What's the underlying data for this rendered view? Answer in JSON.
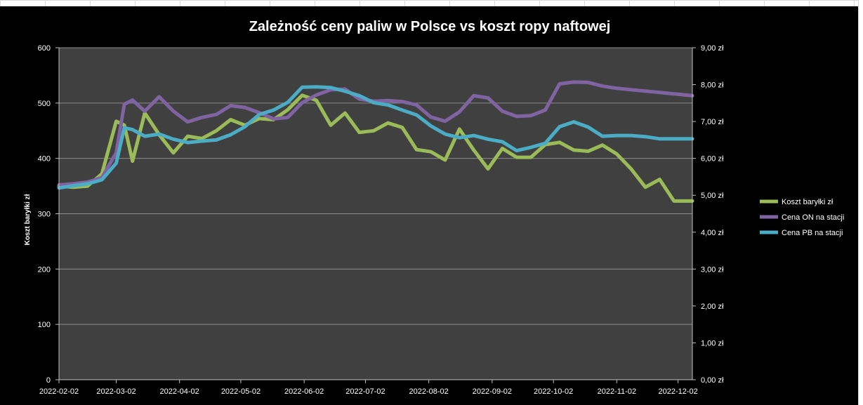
{
  "chart_data": {
    "type": "line",
    "title": "Zależność ceny paliw w Polsce vs koszt ropy naftowej",
    "ylabel": "Koszt baryłki zł",
    "y2label": "",
    "ylim": [
      0,
      600
    ],
    "y2lim": [
      0,
      9
    ],
    "y_ticks": [
      "0",
      "100",
      "200",
      "300",
      "400",
      "500",
      "600"
    ],
    "y2_ticks": [
      "0,00 zł",
      "1,00 zł",
      "2,00 zł",
      "3,00 zł",
      "4,00 zł",
      "5,00 zł",
      "6,00 zł",
      "7,00 zł",
      "8,00 zł",
      "9,00 zł"
    ],
    "x_ticks": [
      "2022-02-02",
      "2022-03-02",
      "2022-04-02",
      "2022-05-02",
      "2022-06-02",
      "2022-07-02",
      "2022-08-02",
      "2022-09-02",
      "2022-10-02",
      "2022-11-02",
      "2022-12-02"
    ],
    "x_start": "2022-02-02",
    "x_end": "2022-12-09",
    "grid": true,
    "legend": "right",
    "series": [
      {
        "name": "Koszt baryłki zł",
        "axis": "left",
        "color": "#9bbb59",
        "x": [
          "2022-02-02",
          "2022-02-09",
          "2022-02-16",
          "2022-02-23",
          "2022-03-02",
          "2022-03-06",
          "2022-03-10",
          "2022-03-16",
          "2022-03-23",
          "2022-03-30",
          "2022-04-06",
          "2022-04-13",
          "2022-04-20",
          "2022-04-27",
          "2022-05-04",
          "2022-05-11",
          "2022-05-18",
          "2022-05-25",
          "2022-06-01",
          "2022-06-08",
          "2022-06-15",
          "2022-06-22",
          "2022-06-29",
          "2022-07-06",
          "2022-07-13",
          "2022-07-20",
          "2022-07-27",
          "2022-08-03",
          "2022-08-10",
          "2022-08-17",
          "2022-08-24",
          "2022-08-31",
          "2022-09-07",
          "2022-09-14",
          "2022-09-21",
          "2022-09-28",
          "2022-10-05",
          "2022-10-12",
          "2022-10-19",
          "2022-10-26",
          "2022-11-02",
          "2022-11-09",
          "2022-11-16",
          "2022-11-23",
          "2022-11-30",
          "2022-12-09"
        ],
        "values": [
          350,
          348,
          350,
          372,
          467,
          460,
          395,
          482,
          443,
          410,
          440,
          436,
          450,
          470,
          460,
          472,
          470,
          488,
          514,
          505,
          460,
          482,
          447,
          450,
          464,
          456,
          416,
          412,
          397,
          453,
          415,
          381,
          418,
          402,
          402,
          425,
          429,
          415,
          413,
          424,
          408,
          381,
          348,
          362,
          323,
          323
        ]
      },
      {
        "name": "Cena ON na stacji",
        "axis": "right",
        "color": "#8064a2",
        "x": [
          "2022-02-02",
          "2022-02-09",
          "2022-02-16",
          "2022-02-23",
          "2022-03-02",
          "2022-03-06",
          "2022-03-10",
          "2022-03-16",
          "2022-03-23",
          "2022-03-30",
          "2022-04-06",
          "2022-04-13",
          "2022-04-20",
          "2022-04-27",
          "2022-05-04",
          "2022-05-11",
          "2022-05-18",
          "2022-05-25",
          "2022-06-01",
          "2022-06-08",
          "2022-06-15",
          "2022-06-22",
          "2022-06-29",
          "2022-07-06",
          "2022-07-13",
          "2022-07-20",
          "2022-07-27",
          "2022-08-03",
          "2022-08-10",
          "2022-08-17",
          "2022-08-24",
          "2022-08-31",
          "2022-09-07",
          "2022-09-14",
          "2022-09-21",
          "2022-09-28",
          "2022-10-05",
          "2022-10-12",
          "2022-10-19",
          "2022-10-26",
          "2022-11-02",
          "2022-12-09"
        ],
        "values": [
          5.28,
          5.31,
          5.36,
          5.48,
          6.15,
          7.47,
          7.58,
          7.28,
          7.67,
          7.28,
          6.99,
          7.11,
          7.19,
          7.43,
          7.38,
          7.24,
          7.07,
          7.11,
          7.51,
          7.72,
          7.86,
          7.88,
          7.61,
          7.55,
          7.57,
          7.54,
          7.45,
          7.12,
          7.01,
          7.26,
          7.7,
          7.64,
          7.28,
          7.14,
          7.16,
          7.31,
          8.02,
          8.07,
          8.06,
          7.96,
          7.9,
          7.7
        ]
      },
      {
        "name": "Cena PB na stacji",
        "axis": "right",
        "color": "#4bacc6",
        "x": [
          "2022-02-02",
          "2022-02-09",
          "2022-02-16",
          "2022-02-23",
          "2022-03-02",
          "2022-03-06",
          "2022-03-10",
          "2022-03-16",
          "2022-03-23",
          "2022-03-30",
          "2022-04-06",
          "2022-04-13",
          "2022-04-20",
          "2022-04-27",
          "2022-05-04",
          "2022-05-11",
          "2022-05-18",
          "2022-05-25",
          "2022-06-01",
          "2022-06-08",
          "2022-06-15",
          "2022-06-22",
          "2022-06-29",
          "2022-07-06",
          "2022-07-13",
          "2022-07-20",
          "2022-07-27",
          "2022-08-03",
          "2022-08-10",
          "2022-08-17",
          "2022-08-24",
          "2022-08-31",
          "2022-09-07",
          "2022-09-14",
          "2022-09-21",
          "2022-09-28",
          "2022-10-05",
          "2022-10-12",
          "2022-10-19",
          "2022-10-26",
          "2022-11-02",
          "2022-11-09",
          "2022-11-16",
          "2022-11-23",
          "2022-11-30",
          "2022-12-09"
        ],
        "values": [
          5.2,
          5.26,
          5.31,
          5.42,
          5.87,
          6.83,
          6.78,
          6.6,
          6.66,
          6.52,
          6.43,
          6.47,
          6.5,
          6.64,
          6.86,
          7.19,
          7.31,
          7.52,
          7.93,
          7.94,
          7.92,
          7.82,
          7.7,
          7.51,
          7.45,
          7.31,
          7.18,
          6.88,
          6.66,
          6.56,
          6.62,
          6.52,
          6.45,
          6.21,
          6.3,
          6.41,
          6.86,
          6.99,
          6.85,
          6.6,
          6.62,
          6.62,
          6.59,
          6.53,
          6.53,
          6.53
        ]
      }
    ]
  }
}
